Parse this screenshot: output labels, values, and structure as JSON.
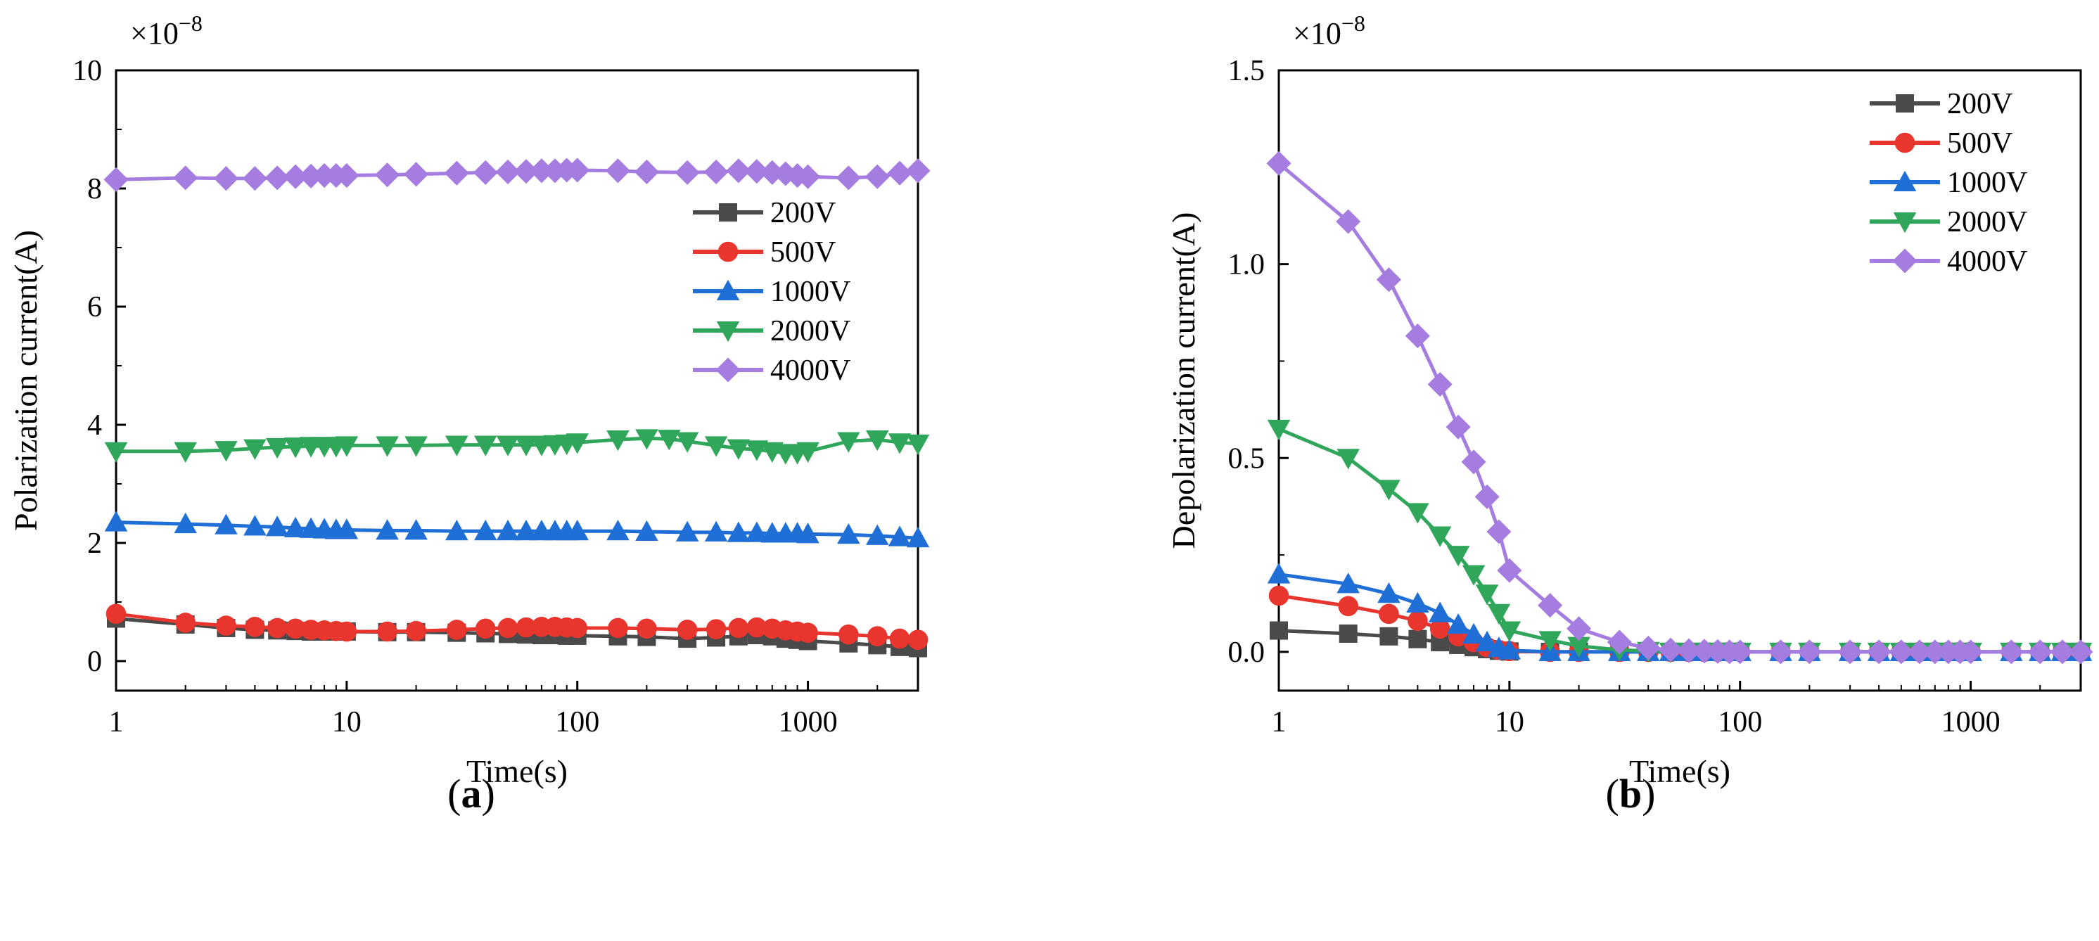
{
  "figure": {
    "panel_a_label": "a",
    "panel_b_label": "b"
  },
  "chart_data": [
    {
      "type": "line",
      "panel": "a",
      "title": "",
      "xlabel": "Time(s)",
      "ylabel": "Polarization current(A)",
      "xscale": "log",
      "xlim": [
        1,
        3000
      ],
      "ylim": [
        -0.5,
        10
      ],
      "y_multiplier_label": "×10",
      "y_multiplier_exp": "−8",
      "xticks": [
        1,
        10,
        100,
        1000
      ],
      "xtick_labels": [
        "1",
        "10",
        "100",
        "1000"
      ],
      "yticks": [
        0,
        2,
        4,
        6,
        8,
        10
      ],
      "ytick_labels": [
        "0",
        "2",
        "4",
        "6",
        "8",
        "10"
      ],
      "legend_position": "right-middle",
      "series": [
        {
          "name": "200V",
          "color": "#4a4a4a",
          "marker": "square",
          "x": [
            1,
            2,
            3,
            4,
            5,
            6,
            7,
            8,
            9,
            10,
            15,
            20,
            30,
            40,
            50,
            60,
            70,
            80,
            90,
            100,
            150,
            200,
            300,
            400,
            500,
            600,
            700,
            800,
            900,
            1000,
            1500,
            2000,
            2500,
            3000
          ],
          "y": [
            0.72,
            0.62,
            0.56,
            0.53,
            0.52,
            0.51,
            0.5,
            0.5,
            0.5,
            0.5,
            0.49,
            0.49,
            0.48,
            0.47,
            0.46,
            0.45,
            0.44,
            0.44,
            0.43,
            0.43,
            0.42,
            0.41,
            0.38,
            0.4,
            0.42,
            0.44,
            0.42,
            0.38,
            0.36,
            0.34,
            0.3,
            0.27,
            0.24,
            0.22
          ]
        },
        {
          "name": "500V",
          "color": "#e8352e",
          "marker": "circle",
          "x": [
            1,
            2,
            3,
            4,
            5,
            6,
            7,
            8,
            9,
            10,
            15,
            20,
            30,
            40,
            50,
            60,
            70,
            80,
            90,
            100,
            150,
            200,
            300,
            400,
            500,
            600,
            700,
            800,
            900,
            1000,
            1500,
            2000,
            2500,
            3000
          ],
          "y": [
            0.8,
            0.65,
            0.6,
            0.58,
            0.56,
            0.55,
            0.53,
            0.52,
            0.51,
            0.5,
            0.5,
            0.51,
            0.53,
            0.55,
            0.56,
            0.57,
            0.58,
            0.58,
            0.57,
            0.56,
            0.56,
            0.55,
            0.53,
            0.54,
            0.56,
            0.57,
            0.55,
            0.52,
            0.5,
            0.48,
            0.45,
            0.42,
            0.38,
            0.36
          ]
        },
        {
          "name": "1000V",
          "color": "#1f6fd6",
          "marker": "triangle-up",
          "x": [
            1,
            2,
            3,
            4,
            5,
            6,
            7,
            8,
            9,
            10,
            15,
            20,
            30,
            40,
            50,
            60,
            70,
            80,
            90,
            100,
            150,
            200,
            300,
            400,
            500,
            600,
            700,
            800,
            900,
            1000,
            1500,
            2000,
            2500,
            3000
          ],
          "y": [
            2.35,
            2.32,
            2.3,
            2.28,
            2.27,
            2.25,
            2.24,
            2.23,
            2.22,
            2.22,
            2.21,
            2.21,
            2.2,
            2.2,
            2.2,
            2.2,
            2.2,
            2.2,
            2.2,
            2.2,
            2.2,
            2.19,
            2.18,
            2.18,
            2.17,
            2.17,
            2.16,
            2.16,
            2.16,
            2.15,
            2.14,
            2.12,
            2.1,
            2.08
          ]
        },
        {
          "name": "2000V",
          "color": "#2fa65a",
          "marker": "triangle-down",
          "x": [
            1,
            2,
            3,
            4,
            5,
            6,
            7,
            8,
            9,
            10,
            15,
            20,
            30,
            40,
            50,
            60,
            70,
            80,
            90,
            100,
            150,
            200,
            250,
            300,
            400,
            500,
            600,
            700,
            800,
            900,
            1000,
            1500,
            2000,
            2500,
            3000
          ],
          "y": [
            3.55,
            3.55,
            3.57,
            3.6,
            3.62,
            3.63,
            3.64,
            3.64,
            3.64,
            3.65,
            3.65,
            3.65,
            3.66,
            3.66,
            3.66,
            3.66,
            3.66,
            3.67,
            3.68,
            3.7,
            3.75,
            3.77,
            3.76,
            3.72,
            3.65,
            3.6,
            3.58,
            3.55,
            3.52,
            3.52,
            3.55,
            3.72,
            3.75,
            3.7,
            3.68
          ]
        },
        {
          "name": "4000V",
          "color": "#a57ce0",
          "marker": "diamond",
          "x": [
            1,
            2,
            3,
            4,
            5,
            6,
            7,
            8,
            9,
            10,
            15,
            20,
            30,
            40,
            50,
            60,
            70,
            80,
            90,
            100,
            150,
            200,
            300,
            400,
            500,
            600,
            700,
            800,
            900,
            1000,
            1500,
            2000,
            2500,
            3000
          ],
          "y": [
            8.15,
            8.18,
            8.17,
            8.17,
            8.18,
            8.2,
            8.21,
            8.22,
            8.22,
            8.22,
            8.23,
            8.24,
            8.26,
            8.27,
            8.28,
            8.29,
            8.3,
            8.3,
            8.31,
            8.31,
            8.3,
            8.28,
            8.27,
            8.28,
            8.3,
            8.29,
            8.27,
            8.25,
            8.22,
            8.2,
            8.18,
            8.2,
            8.26,
            8.3
          ]
        }
      ]
    },
    {
      "type": "line",
      "panel": "b",
      "title": "",
      "xlabel": "Time(s)",
      "ylabel": "Depolarization current(A)",
      "xscale": "log",
      "xlim": [
        1,
        3000
      ],
      "ylim": [
        -0.1,
        1.5
      ],
      "y_multiplier_label": "×10",
      "y_multiplier_exp": "−8",
      "xticks": [
        1,
        10,
        100,
        1000
      ],
      "xtick_labels": [
        "1",
        "10",
        "100",
        "1000"
      ],
      "yticks": [
        0,
        0.5,
        1.0,
        1.5
      ],
      "ytick_labels": [
        "0.0",
        "0.5",
        "1.0",
        "1.5"
      ],
      "legend_position": "top-right",
      "series": [
        {
          "name": "200V",
          "color": "#4a4a4a",
          "marker": "square",
          "x": [
            1,
            2,
            3,
            4,
            5,
            6,
            7,
            8,
            9,
            10,
            15,
            20,
            30,
            40,
            50,
            60,
            70,
            80,
            90,
            100,
            150,
            200,
            300,
            400,
            500,
            600,
            700,
            800,
            900,
            1000,
            1500,
            2000,
            2500,
            3000
          ],
          "y": [
            0.055,
            0.047,
            0.04,
            0.033,
            0.025,
            0.018,
            0.012,
            0.007,
            0.003,
            0.001,
            0,
            0,
            0,
            0,
            0,
            0,
            0,
            0,
            0,
            0,
            0,
            0,
            0,
            0,
            0,
            0,
            0,
            0,
            0,
            0,
            0,
            0,
            0,
            0
          ]
        },
        {
          "name": "500V",
          "color": "#e8352e",
          "marker": "circle",
          "x": [
            1,
            2,
            3,
            4,
            5,
            6,
            7,
            8,
            9,
            10,
            15,
            20,
            30,
            40,
            50,
            60,
            70,
            80,
            90,
            100,
            150,
            200,
            300,
            400,
            500,
            600,
            700,
            800,
            900,
            1000,
            1500,
            2000,
            2500,
            3000
          ],
          "y": [
            0.145,
            0.118,
            0.098,
            0.08,
            0.06,
            0.04,
            0.025,
            0.012,
            0.005,
            0.002,
            0,
            0,
            0,
            0,
            0,
            0,
            0,
            0,
            0,
            0,
            0,
            0,
            0,
            0,
            0,
            0,
            0,
            0,
            0,
            0,
            0,
            0,
            0,
            0
          ]
        },
        {
          "name": "1000V",
          "color": "#1f6fd6",
          "marker": "triangle-up",
          "x": [
            1,
            2,
            3,
            4,
            5,
            6,
            7,
            8,
            9,
            10,
            15,
            20,
            30,
            40,
            50,
            60,
            70,
            80,
            90,
            100,
            150,
            200,
            300,
            400,
            500,
            600,
            700,
            800,
            900,
            1000,
            1500,
            2000,
            2500,
            3000
          ],
          "y": [
            0.2,
            0.175,
            0.15,
            0.125,
            0.1,
            0.07,
            0.045,
            0.025,
            0.01,
            0.004,
            0,
            0,
            0,
            0,
            0,
            0,
            0,
            0,
            0,
            0,
            0,
            0,
            0,
            0,
            0,
            0,
            0,
            0,
            0,
            0,
            0,
            0,
            0,
            0
          ]
        },
        {
          "name": "2000V",
          "color": "#2fa65a",
          "marker": "triangle-down",
          "x": [
            1,
            2,
            3,
            4,
            5,
            6,
            7,
            8,
            9,
            10,
            15,
            20,
            30,
            40,
            50,
            60,
            70,
            80,
            90,
            100,
            150,
            200,
            300,
            400,
            500,
            600,
            700,
            800,
            900,
            1000,
            1500,
            2000,
            2500,
            3000
          ],
          "y": [
            0.575,
            0.5,
            0.42,
            0.36,
            0.3,
            0.25,
            0.2,
            0.15,
            0.1,
            0.055,
            0.03,
            0.015,
            0.005,
            0.002,
            0,
            0,
            0,
            0,
            0,
            0,
            0,
            0,
            0,
            0,
            0,
            0,
            0,
            0,
            0,
            0,
            0,
            0,
            0,
            0
          ]
        },
        {
          "name": "4000V",
          "color": "#a57ce0",
          "marker": "diamond",
          "x": [
            1,
            2,
            3,
            4,
            5,
            6,
            7,
            8,
            9,
            10,
            15,
            20,
            30,
            40,
            50,
            60,
            70,
            80,
            90,
            100,
            150,
            200,
            300,
            400,
            500,
            600,
            700,
            800,
            900,
            1000,
            1500,
            2000,
            2500,
            3000
          ],
          "y": [
            1.26,
            1.11,
            0.96,
            0.815,
            0.69,
            0.58,
            0.49,
            0.4,
            0.31,
            0.21,
            0.12,
            0.06,
            0.025,
            0.01,
            0.005,
            0.003,
            0.002,
            0.001,
            0,
            0,
            0,
            0,
            0,
            0,
            0,
            0,
            0,
            0,
            0,
            0,
            0,
            0,
            0,
            0
          ]
        }
      ]
    }
  ]
}
